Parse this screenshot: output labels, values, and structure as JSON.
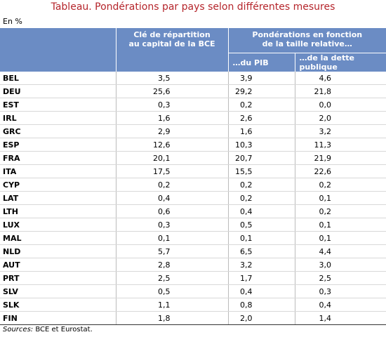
{
  "title": "Tableau. Pondérations par pays selon différentes mesures",
  "unit": "En %",
  "header": {
    "col1": [
      "Clé de répartition",
      "au capital de la BCE"
    ],
    "group": [
      "Pondérations en fonction",
      "de la taille relative…"
    ],
    "col2": "…du PIB",
    "col3": "…de la dette publique"
  },
  "table": {
    "rows": [
      [
        "BEL",
        "3,5",
        "3,9",
        "4,6"
      ],
      [
        "DEU",
        "25,6",
        "29,2",
        "21,8"
      ],
      [
        "EST",
        "0,3",
        "0,2",
        "0,0"
      ],
      [
        "IRL",
        "1,6",
        "2,6",
        "2,0"
      ],
      [
        "GRC",
        "2,9",
        "1,6",
        "3,2"
      ],
      [
        "ESP",
        "12,6",
        "10,3",
        "11,3"
      ],
      [
        "FRA",
        "20,1",
        "20,7",
        "21,9"
      ],
      [
        "ITA",
        "17,5",
        "15,5",
        "22,6"
      ],
      [
        "CYP",
        "0,2",
        "0,2",
        "0,2"
      ],
      [
        "LAT",
        "0,4",
        "0,2",
        "0,1"
      ],
      [
        "LTH",
        "0,6",
        "0,4",
        "0,2"
      ],
      [
        "LUX",
        "0,3",
        "0,5",
        "0,1"
      ],
      [
        "MAL",
        "0,1",
        "0,1",
        "0,1"
      ],
      [
        "NLD",
        "5,7",
        "6,5",
        "4,4"
      ],
      [
        "AUT",
        "2,8",
        "3,2",
        "3,0"
      ],
      [
        "PRT",
        "2,5",
        "1,7",
        "2,5"
      ],
      [
        "SLV",
        "0,5",
        "0,4",
        "0,3"
      ],
      [
        "SLK",
        "1,1",
        "0,8",
        "0,4"
      ],
      [
        "FIN",
        "1,8",
        "2,0",
        "1,4"
      ]
    ]
  },
  "source": {
    "label": "Sources:",
    "text": "BCE et Eurostat."
  }
}
